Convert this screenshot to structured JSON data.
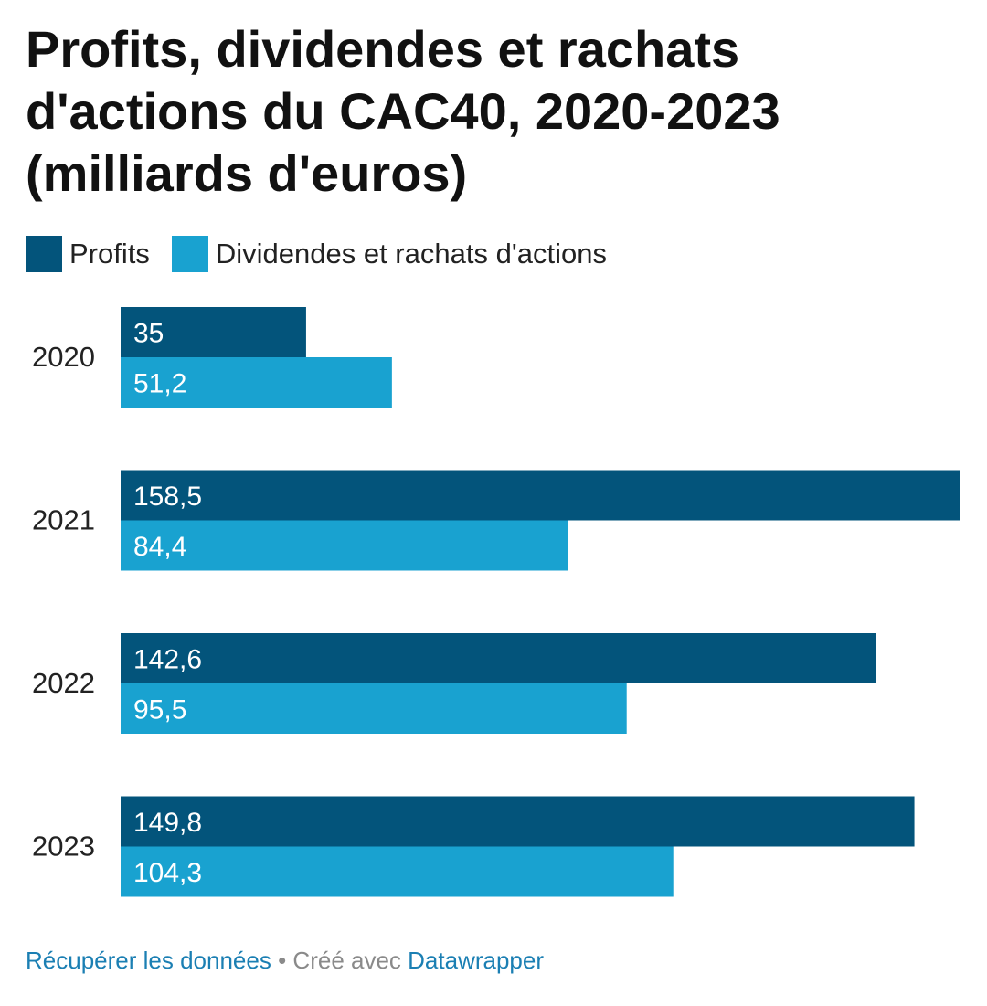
{
  "title_lines": [
    "Profits, dividendes et rachats",
    "d'actions du CAC40, 2020-2023",
    "(milliards d'euros)"
  ],
  "colors": {
    "profits": "#03547b",
    "dividendes": "#19a2d0",
    "footer_link": "#1b7fb3",
    "footer_muted": "#8a8a8a"
  },
  "chart_data": {
    "type": "bar",
    "orientation": "horizontal",
    "categories": [
      "2020",
      "2021",
      "2022",
      "2023"
    ],
    "series": [
      {
        "name": "Profits",
        "values": [
          35,
          158.5,
          142.6,
          149.8
        ],
        "labels": [
          "35",
          "158,5",
          "142,6",
          "149,8"
        ]
      },
      {
        "name": "Dividendes et rachats d'actions",
        "values": [
          51.2,
          84.4,
          95.5,
          104.3
        ],
        "labels": [
          "51,2",
          "84,4",
          "95,5",
          "104,3"
        ]
      }
    ],
    "xlim": [
      0,
      158.5
    ],
    "legend_position": "top-left",
    "grid": false
  },
  "footer": {
    "data_link": "Récupérer les données",
    "separator": "•",
    "created_with": "Créé avec",
    "tool_link": "Datawrapper"
  }
}
